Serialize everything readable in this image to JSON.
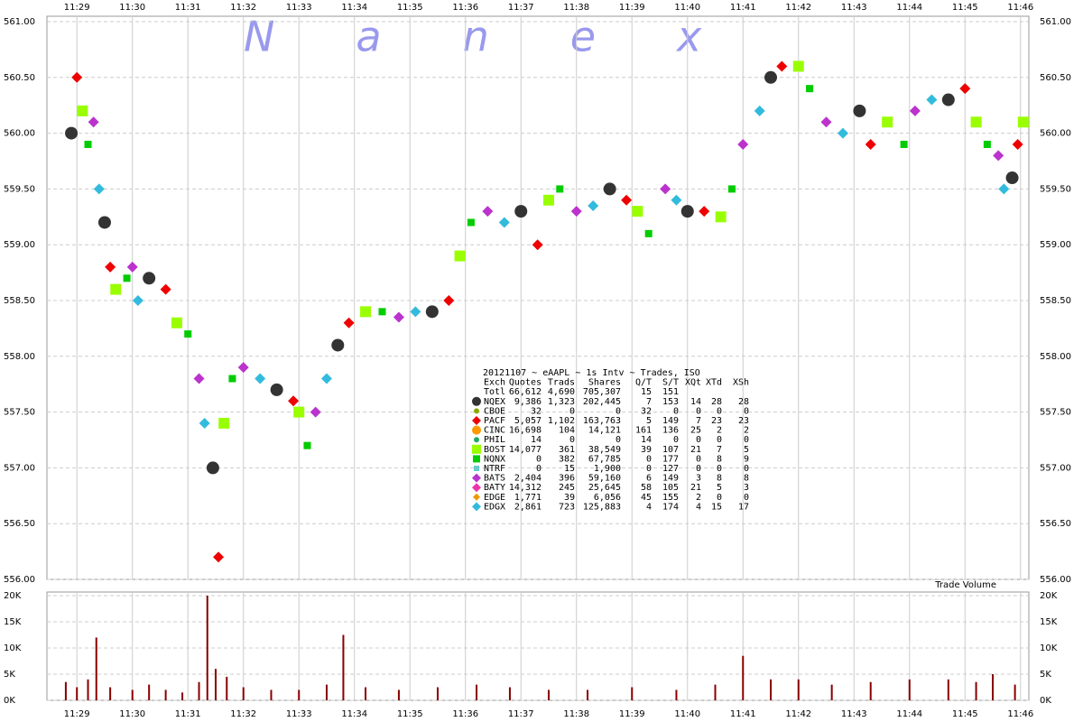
{
  "chart_data": [
    {
      "type": "scatter",
      "watermark": "Nanex",
      "table_title": "20121107 ~ eAAPL ~ 1s Intv ~ Trades, ISO",
      "table_columns": [
        "Exch",
        "Quotes",
        "Trads",
        "Shares",
        "Q/T",
        "S/T",
        "XQt",
        "XTd",
        "XSh"
      ],
      "total": {
        "name": "Totl",
        "stats": [
          "66,612",
          "4,690",
          "705,307",
          "15",
          "151",
          "",
          "",
          ""
        ]
      },
      "xlim": [
        28.46,
        46.15
      ],
      "xticks": [
        {
          "value": 29,
          "label": "11:29"
        },
        {
          "value": 30,
          "label": "11:30"
        },
        {
          "value": 31,
          "label": "11:31"
        },
        {
          "value": 32,
          "label": "11:32"
        },
        {
          "value": 33,
          "label": "11:33"
        },
        {
          "value": 34,
          "label": "11:34"
        },
        {
          "value": 35,
          "label": "11:35"
        },
        {
          "value": 36,
          "label": "11:36"
        },
        {
          "value": 37,
          "label": "11:37"
        },
        {
          "value": 38,
          "label": "11:38"
        },
        {
          "value": 39,
          "label": "11:39"
        },
        {
          "value": 40,
          "label": "11:40"
        },
        {
          "value": 41,
          "label": "11:41"
        },
        {
          "value": 42,
          "label": "11:42"
        },
        {
          "value": 43,
          "label": "11:43"
        },
        {
          "value": 44,
          "label": "11:44"
        },
        {
          "value": 45,
          "label": "11:45"
        },
        {
          "value": 46,
          "label": "11:46"
        }
      ],
      "ylim": [
        556,
        561
      ],
      "yticks": [
        {
          "value": 556,
          "label": "556.00"
        },
        {
          "value": 556.5,
          "label": "556.50"
        },
        {
          "value": 557,
          "label": "557.00"
        },
        {
          "value": 557.5,
          "label": "557.50"
        },
        {
          "value": 558,
          "label": "558.00"
        },
        {
          "value": 558.5,
          "label": "558.50"
        },
        {
          "value": 559,
          "label": "559.00"
        },
        {
          "value": 559.5,
          "label": "559.50"
        },
        {
          "value": 560,
          "label": "560.00"
        },
        {
          "value": 560.5,
          "label": "560.50"
        },
        {
          "value": 561,
          "label": "561.00"
        }
      ],
      "grid": true,
      "series": [
        {
          "name": "NQEX",
          "color": "#333333",
          "marker": "circle",
          "size": 7,
          "stats": [
            "9,386",
            "1,323",
            "202,445",
            "7",
            "153",
            "14",
            "28",
            "28"
          ],
          "x": [
            28.9,
            29.5,
            30.3,
            31.45,
            32.6,
            33.7,
            35.4,
            37.0,
            38.6,
            40.0,
            41.5,
            43.1,
            44.7,
            45.85
          ],
          "values": [
            560.0,
            559.2,
            558.7,
            557.0,
            557.7,
            558.1,
            558.4,
            559.3,
            559.5,
            559.3,
            560.5,
            560.2,
            560.3,
            559.6
          ]
        },
        {
          "name": "CBOE",
          "color": "#88aa00",
          "marker": "circle",
          "size": 3,
          "stats": [
            "32",
            "0",
            "0",
            "32",
            "0",
            "0",
            "0",
            "0"
          ],
          "x": [],
          "values": []
        },
        {
          "name": "PACF",
          "color": "#ee0000",
          "marker": "diamond",
          "size": 6,
          "stats": [
            "5,057",
            "1,102",
            "163,763",
            "5",
            "149",
            "7",
            "23",
            "23"
          ],
          "x": [
            29.0,
            29.6,
            30.6,
            31.55,
            32.9,
            33.9,
            35.7,
            37.3,
            38.9,
            40.3,
            41.7,
            43.3,
            45.0,
            45.95
          ],
          "values": [
            560.5,
            558.8,
            558.6,
            556.2,
            557.6,
            558.3,
            558.5,
            559.0,
            559.4,
            559.3,
            560.6,
            559.9,
            560.4,
            559.9
          ]
        },
        {
          "name": "CINC",
          "color": "#ff9900",
          "marker": "circle",
          "size": 6,
          "stats": [
            "16,698",
            "104",
            "14,121",
            "161",
            "136",
            "25",
            "2",
            "2"
          ],
          "x": [],
          "values": []
        },
        {
          "name": "PHIL",
          "color": "#22aa66",
          "marker": "circle",
          "size": 3,
          "stats": [
            "14",
            "0",
            "0",
            "14",
            "0",
            "0",
            "0",
            "0"
          ],
          "x": [],
          "values": []
        },
        {
          "name": "BOST",
          "color": "#99ff00",
          "marker": "square",
          "size": 6,
          "stats": [
            "14,077",
            "361",
            "38,549",
            "39",
            "107",
            "21",
            "7",
            "5"
          ],
          "x": [
            29.1,
            29.7,
            30.8,
            31.65,
            33.0,
            34.2,
            35.9,
            37.5,
            39.1,
            40.6,
            42.0,
            43.6,
            45.2,
            46.05
          ],
          "values": [
            560.2,
            558.6,
            558.3,
            557.4,
            557.5,
            558.4,
            558.9,
            559.4,
            559.3,
            559.25,
            560.6,
            560.1,
            560.1,
            560.1
          ]
        },
        {
          "name": "NQNX",
          "color": "#00cc00",
          "marker": "square",
          "size": 4,
          "stats": [
            "0",
            "382",
            "67,785",
            "0",
            "177",
            "0",
            "8",
            "9"
          ],
          "x": [
            29.2,
            29.9,
            31.0,
            31.8,
            33.15,
            34.5,
            36.1,
            37.7,
            39.3,
            40.8,
            42.2,
            43.9,
            45.4
          ],
          "values": [
            559.9,
            558.7,
            558.2,
            557.8,
            557.2,
            558.4,
            559.2,
            559.5,
            559.1,
            559.5,
            560.4,
            559.9,
            559.9
          ]
        },
        {
          "name": "NTRF",
          "color": "#66cccc",
          "marker": "square",
          "size": 3,
          "stats": [
            "0",
            "15",
            "1,900",
            "0",
            "127",
            "0",
            "0",
            "0"
          ],
          "x": [],
          "values": []
        },
        {
          "name": "BATS",
          "color": "#bb33cc",
          "marker": "diamond",
          "size": 6,
          "stats": [
            "2,404",
            "396",
            "59,160",
            "6",
            "149",
            "3",
            "8",
            "8"
          ],
          "x": [
            29.3,
            30.0,
            31.2,
            32.0,
            33.3,
            34.8,
            36.4,
            38.0,
            39.6,
            41.0,
            42.5,
            44.1,
            45.6
          ],
          "values": [
            560.1,
            558.8,
            557.8,
            557.9,
            557.5,
            558.35,
            559.3,
            559.3,
            559.5,
            559.9,
            560.1,
            560.2,
            559.8
          ]
        },
        {
          "name": "BATY",
          "color": "#ee33aa",
          "marker": "diamond",
          "size": 7,
          "stats": [
            "14,312",
            "245",
            "25,645",
            "58",
            "105",
            "21",
            "5",
            "3"
          ],
          "x": [],
          "values": []
        },
        {
          "name": "EDGE",
          "color": "#ee9900",
          "marker": "diamond",
          "size": 4,
          "stats": [
            "1,771",
            "39",
            "6,056",
            "45",
            "155",
            "2",
            "0",
            "0"
          ],
          "x": [],
          "values": []
        },
        {
          "name": "EDGX",
          "color": "#33bbdd",
          "marker": "diamond",
          "size": 6,
          "stats": [
            "2,861",
            "723",
            "125,883",
            "4",
            "174",
            "4",
            "15",
            "17"
          ],
          "x": [
            29.4,
            30.1,
            31.3,
            32.3,
            33.5,
            35.1,
            36.7,
            38.3,
            39.8,
            41.3,
            42.8,
            44.4,
            45.7
          ],
          "values": [
            559.5,
            558.5,
            557.4,
            557.8,
            557.8,
            558.4,
            559.2,
            559.35,
            559.4,
            560.2,
            560.0,
            560.3,
            559.5
          ]
        }
      ]
    },
    {
      "type": "bar",
      "title": "Trade Volume",
      "color": "#880000",
      "ylim": [
        0,
        20000
      ],
      "yticks": [
        {
          "value": 0,
          "label": "0K"
        },
        {
          "value": 5000,
          "label": "5K"
        },
        {
          "value": 10000,
          "label": "10K"
        },
        {
          "value": 15000,
          "label": "15K"
        },
        {
          "value": 20000,
          "label": "20K"
        }
      ],
      "grid": true,
      "x": [
        28.8,
        29.0,
        29.2,
        29.35,
        29.6,
        30.0,
        30.3,
        30.6,
        30.9,
        31.2,
        31.35,
        31.5,
        31.7,
        32.0,
        32.5,
        33.0,
        33.5,
        33.8,
        34.2,
        34.8,
        35.5,
        36.2,
        36.8,
        37.5,
        38.2,
        39.0,
        39.8,
        40.5,
        41.0,
        41.5,
        42.0,
        42.6,
        43.3,
        44.0,
        44.7,
        45.2,
        45.5,
        45.9
      ],
      "values": [
        3500,
        2500,
        4000,
        12000,
        2500,
        2000,
        3000,
        2000,
        1500,
        3500,
        20000,
        6000,
        4500,
        2500,
        2000,
        2000,
        3000,
        12500,
        2500,
        2000,
        2500,
        3000,
        2500,
        2000,
        2000,
        2500,
        2000,
        3000,
        8500,
        4000,
        4000,
        3000,
        3500,
        4000,
        4000,
        3500,
        5000,
        3000
      ]
    }
  ]
}
